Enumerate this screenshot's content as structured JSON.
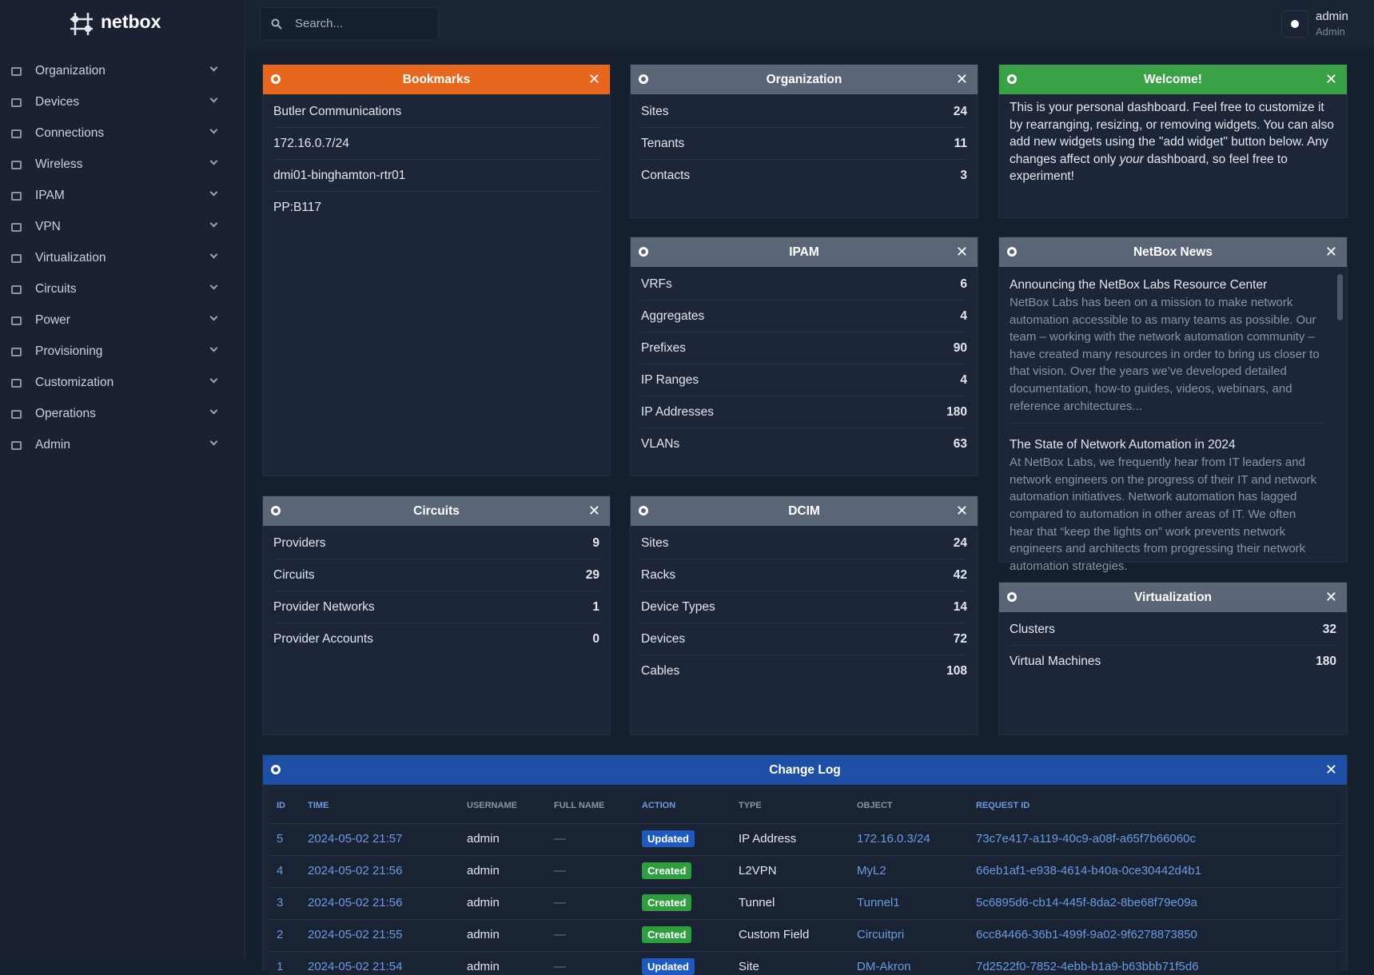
{
  "brand": "netbox",
  "search_placeholder": "Search...",
  "user": {
    "name": "admin",
    "role": "Admin"
  },
  "nav": [
    "Organization",
    "Devices",
    "Connections",
    "Wireless",
    "IPAM",
    "VPN",
    "Virtualization",
    "Circuits",
    "Power",
    "Provisioning",
    "Customization",
    "Operations",
    "Admin"
  ],
  "bookmarks": {
    "title": "Bookmarks",
    "items": [
      "Butler Communications",
      "172.16.0.7/24",
      "dmi01-binghamton-rtr01",
      "PP:B117"
    ]
  },
  "organization": {
    "title": "Organization",
    "rows": [
      [
        "Sites",
        24
      ],
      [
        "Tenants",
        11
      ],
      [
        "Contacts",
        3
      ]
    ]
  },
  "welcome": {
    "title": "Welcome!",
    "text_before": "This is your personal dashboard. Feel free to customize it by rearranging, resizing, or removing widgets. You can also add new widgets using the \"add widget\" button below. Any changes affect only ",
    "text_em": "your",
    "text_after": " dashboard, so feel free to experiment!"
  },
  "ipam": {
    "title": "IPAM",
    "rows": [
      [
        "VRFs",
        6
      ],
      [
        "Aggregates",
        4
      ],
      [
        "Prefixes",
        90
      ],
      [
        "IP Ranges",
        4
      ],
      [
        "IP Addresses",
        180
      ],
      [
        "VLANs",
        63
      ]
    ]
  },
  "news": {
    "title": "NetBox News",
    "items": [
      {
        "title": "Announcing the NetBox Labs Resource Center",
        "body": "NetBox Labs has been on a mission to make network automation accessible to as many teams as possible. Our team – working with the network automation community – have created many resources in order to bring us closer to that vision. Over the years we’ve developed detailed documentation, how-to guides, videos, webinars, and reference architectures..."
      },
      {
        "title": "The State of Network Automation in 2024",
        "body": "At NetBox Labs, we frequently hear from IT leaders and network engineers on the progress of their IT and network automation initiatives. Network automation has lagged compared to automation in other areas of IT. We often hear that “keep the lights on” work prevents network engineers and architects from progressing their network automation strategies."
      }
    ]
  },
  "circuits": {
    "title": "Circuits",
    "rows": [
      [
        "Providers",
        9
      ],
      [
        "Circuits",
        29
      ],
      [
        "Provider Networks",
        1
      ],
      [
        "Provider Accounts",
        0
      ]
    ]
  },
  "dcim": {
    "title": "DCIM",
    "rows": [
      [
        "Sites",
        24
      ],
      [
        "Racks",
        42
      ],
      [
        "Device Types",
        14
      ],
      [
        "Devices",
        72
      ],
      [
        "Cables",
        108
      ]
    ]
  },
  "virtualization": {
    "title": "Virtualization",
    "rows": [
      [
        "Clusters",
        32
      ],
      [
        "Virtual Machines",
        180
      ]
    ]
  },
  "changelog": {
    "title": "Change Log",
    "columns": [
      "ID",
      "TIME",
      "USERNAME",
      "FULL NAME",
      "ACTION",
      "TYPE",
      "OBJECT",
      "REQUEST ID"
    ],
    "rows": [
      [
        "5",
        "2024-05-02 21:57",
        "admin",
        "—",
        "Updated",
        "IP Address",
        "172.16.0.3/24",
        "73c7e417-a119-40c9-a08f-a65f7b66060c"
      ],
      [
        "4",
        "2024-05-02 21:56",
        "admin",
        "—",
        "Created",
        "L2VPN",
        "MyL2",
        "66eb1af1-e938-4614-b40a-0ce30442d4b1"
      ],
      [
        "3",
        "2024-05-02 21:56",
        "admin",
        "—",
        "Created",
        "Tunnel",
        "Tunnel1",
        "5c6895d6-cb14-445f-8da2-8be68f79e09a"
      ],
      [
        "2",
        "2024-05-02 21:55",
        "admin",
        "—",
        "Created",
        "Custom Field",
        "Circuitpri",
        "6cc84466-36b1-499f-9a02-9f6278873850"
      ],
      [
        "1",
        "2024-05-02 21:54",
        "admin",
        "—",
        "Updated",
        "Site",
        "DM-Akron",
        "7d2522f0-7852-4ebb-b1a9-b63bbb71f5d6"
      ]
    ]
  }
}
